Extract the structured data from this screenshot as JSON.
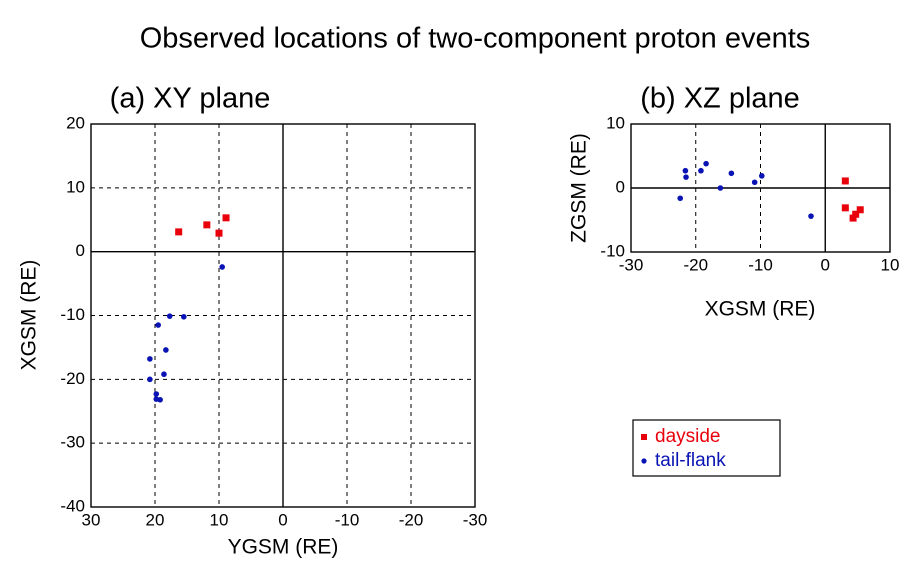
{
  "title": "Observed locations of two-component proton events",
  "legend": [
    {
      "name": "dayside",
      "color": "#e8000b",
      "marker": "square"
    },
    {
      "name": "tail-flank",
      "color": "#0a14b4",
      "marker": "circle"
    }
  ],
  "chart_data": [
    {
      "type": "scatter",
      "title": "(a) XY plane",
      "xlabel": "YGSM (RE)",
      "ylabel": "XGSM (RE)",
      "xlim": [
        30,
        -30
      ],
      "xticks": [
        30,
        20,
        10,
        0,
        -10,
        -20,
        -30
      ],
      "ylim": [
        -40,
        20
      ],
      "yticks": [
        -40,
        -30,
        -20,
        -10,
        0,
        10,
        20
      ],
      "grid": true,
      "zero_lines": true,
      "series": [
        {
          "x": [
            16.3,
            11.9,
            10.0,
            8.9
          ],
          "values": [
            3.1,
            4.2,
            2.9,
            5.3
          ]
        },
        {
          "x": [
            9.5,
            19.5,
            17.7,
            15.5,
            18.3,
            20.8,
            18.6,
            20.8,
            19.8,
            19.2,
            19.8
          ],
          "values": [
            -2.4,
            -11.5,
            -10.1,
            -10.2,
            -15.4,
            -16.8,
            -19.2,
            -20.0,
            -22.3,
            -23.2,
            -23.1
          ]
        }
      ]
    },
    {
      "type": "scatter",
      "title": "(b) XZ plane",
      "xlabel": "XGSM (RE)",
      "ylabel": "ZGSM (RE)",
      "xlim": [
        -30,
        10
      ],
      "xticks": [
        -30,
        -20,
        -10,
        0,
        10
      ],
      "ylim": [
        -10,
        10
      ],
      "yticks": [
        -10,
        0,
        10
      ],
      "grid": true,
      "zero_lines": true,
      "series": [
        {
          "x": [
            3.1,
            3.1,
            4.3,
            5.4,
            4.7
          ],
          "values": [
            1.1,
            -3.1,
            -4.7,
            -3.4,
            -4.1
          ]
        },
        {
          "x": [
            -22.4,
            -21.6,
            -21.5,
            -19.2,
            -18.4,
            -16.2,
            -14.5,
            -10.9,
            -9.8,
            -2.2
          ],
          "values": [
            -1.6,
            2.7,
            1.7,
            2.7,
            3.8,
            0.0,
            2.3,
            0.9,
            1.9,
            -4.4
          ]
        }
      ]
    }
  ]
}
